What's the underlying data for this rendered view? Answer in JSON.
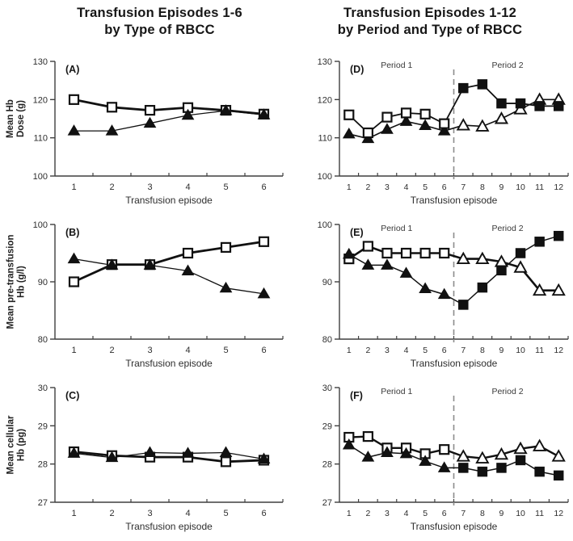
{
  "header": {
    "left_title_line1": "Transfusion Episodes 1-6",
    "left_title_line2": "by Type of RBCC",
    "right_title_line1": "Transfusion Episodes 1-12",
    "right_title_line2": "by Period and Type of RBCC"
  },
  "rows": [
    {
      "ylabel_line1": "Mean Hb",
      "ylabel_line2": "Dose (g)"
    },
    {
      "ylabel_line1": "Mean pre-transfusion",
      "ylabel_line2": "Hb (g/l)"
    },
    {
      "ylabel_line1": "Mean cellular",
      "ylabel_line2": "Hb (pg)"
    }
  ],
  "colors": {
    "line": "#111111",
    "axis": "#3f3f3f",
    "text": "#2e2e2e",
    "divider": "#8c8c8c",
    "marker_open_fill": "#ffffff",
    "marker_solid_fill": "#111111"
  },
  "marker_legend": {
    "os": "open-square",
    "fs": "filled-square",
    "ft": "filled-triangle",
    "ot": "open-triangle"
  },
  "chart_data": [
    {
      "panel": "A",
      "label": "(A)",
      "type": "line",
      "column": "left",
      "xlabel": "Transfusion episode",
      "ylabel": "Mean Hb Dose (g)",
      "ylim": [
        100,
        130
      ],
      "yticks": [
        100,
        110,
        120,
        130
      ],
      "categories": [
        1,
        2,
        3,
        4,
        5,
        6
      ],
      "series": [
        {
          "name": "open-squares",
          "line_width": 2.8,
          "marker": [
            "os",
            "os",
            "os",
            "os",
            "os",
            "os"
          ],
          "values": [
            120,
            118,
            117.2,
            117.9,
            117.2,
            116.2
          ]
        },
        {
          "name": "filled-triangles",
          "line_width": 1.3,
          "marker": [
            "ft",
            "ft",
            "ft",
            "ft",
            "ft",
            "ft"
          ],
          "values": [
            111.8,
            111.8,
            113.8,
            115.9,
            117.1,
            116
          ]
        }
      ]
    },
    {
      "panel": "B",
      "label": "(B)",
      "type": "line",
      "column": "left",
      "xlabel": "Transfusion episode",
      "ylabel": "Mean pre-transfusion Hb (g/l)",
      "ylim": [
        80,
        100
      ],
      "yticks": [
        80,
        90,
        100
      ],
      "categories": [
        1,
        2,
        3,
        4,
        5,
        6
      ],
      "series": [
        {
          "name": "open-squares",
          "line_width": 2.8,
          "marker": [
            "os",
            "os",
            "os",
            "os",
            "os",
            "os"
          ],
          "values": [
            90,
            93,
            93,
            95,
            96,
            97
          ]
        },
        {
          "name": "filled-triangles",
          "line_width": 1.3,
          "marker": [
            "ft",
            "ft",
            "ft",
            "ft",
            "ft",
            "ft"
          ],
          "values": [
            94,
            92.9,
            92.9,
            91.9,
            88.9,
            87.9
          ]
        }
      ]
    },
    {
      "panel": "C",
      "label": "(C)",
      "type": "line",
      "column": "left",
      "xlabel": "Transfusion episode",
      "ylabel": "Mean cellular Hb (pg)",
      "ylim": [
        27,
        30
      ],
      "yticks": [
        27,
        28,
        29,
        30
      ],
      "categories": [
        1,
        2,
        3,
        4,
        5,
        6
      ],
      "series": [
        {
          "name": "open-squares",
          "line_width": 2.8,
          "marker": [
            "os",
            "os",
            "os",
            "os",
            "os",
            "os"
          ],
          "values": [
            28.32,
            28.22,
            28.18,
            28.18,
            28.06,
            28.1
          ]
        },
        {
          "name": "filled-triangles",
          "line_width": 1.3,
          "marker": [
            "ft",
            "ft",
            "ft",
            "ft",
            "ft",
            "ft"
          ],
          "values": [
            28.28,
            28.17,
            28.3,
            28.28,
            28.3,
            28.13
          ]
        }
      ]
    },
    {
      "panel": "D",
      "label": "(D)",
      "type": "line",
      "column": "right",
      "xlabel": "Transfusion episode",
      "ylabel": "Mean Hb Dose (g)",
      "ylim": [
        100,
        130
      ],
      "yticks": [
        100,
        110,
        120,
        130
      ],
      "categories": [
        1,
        2,
        3,
        4,
        5,
        6,
        7,
        8,
        9,
        10,
        11,
        12
      ],
      "divider_after": 6,
      "period_labels": [
        "Period 1",
        "Period 2"
      ],
      "series": [
        {
          "name": "triangles-line",
          "line_width": 1.6,
          "marker": [
            "ft",
            "ft",
            "ft",
            "ft",
            "ft",
            "ft",
            "ot",
            "ot",
            "ot",
            "ot",
            "ot",
            "ot"
          ],
          "values": [
            111,
            109.8,
            112.2,
            114.3,
            113.2,
            111.8,
            113.3,
            113,
            115,
            117.5,
            120,
            120
          ]
        },
        {
          "name": "squares-line",
          "line_width": 1.8,
          "marker": [
            "os",
            "os",
            "os",
            "os",
            "os",
            "os",
            "fs",
            "fs",
            "fs",
            "fs",
            "fs",
            "fs"
          ],
          "values": [
            116,
            111.3,
            115.4,
            116.5,
            116.2,
            113.7,
            123,
            124,
            119,
            119,
            118.3,
            118.3
          ]
        }
      ]
    },
    {
      "panel": "E",
      "label": "(E)",
      "type": "line",
      "column": "right",
      "xlabel": "Transfusion episode",
      "ylabel": "Mean pre-transfusion Hb (g/l)",
      "ylim": [
        80,
        100
      ],
      "yticks": [
        80,
        90,
        100
      ],
      "categories": [
        1,
        2,
        3,
        4,
        5,
        6,
        7,
        8,
        9,
        10,
        11,
        12
      ],
      "divider_after": 6,
      "period_labels": [
        "Period 1",
        "Period 2"
      ],
      "series": [
        {
          "name": "open-markers-line",
          "line_width": 2.6,
          "marker": [
            "os",
            "os",
            "os",
            "os",
            "os",
            "os",
            "ot",
            "ot",
            "ot",
            "ot",
            "ot",
            "ot"
          ],
          "values": [
            94,
            96.2,
            95,
            95,
            95,
            95,
            94,
            94,
            93.5,
            92.5,
            88.5,
            88.5
          ]
        },
        {
          "name": "filled-markers-line",
          "line_width": 1.5,
          "marker": [
            "ft",
            "ft",
            "ft",
            "ft",
            "ft",
            "ft",
            "fs",
            "fs",
            "fs",
            "fs",
            "fs",
            "fs"
          ],
          "values": [
            94.8,
            92.9,
            92.9,
            91.5,
            88.8,
            87.8,
            86,
            89,
            92,
            95,
            97,
            98
          ]
        }
      ]
    },
    {
      "panel": "F",
      "label": "(F)",
      "type": "line",
      "column": "right",
      "xlabel": "Transfusion episode",
      "ylabel": "Mean cellular Hb (pg)",
      "ylim": [
        27,
        30
      ],
      "yticks": [
        27,
        28,
        29,
        30
      ],
      "categories": [
        1,
        2,
        3,
        4,
        5,
        6,
        7,
        8,
        9,
        10,
        11,
        12
      ],
      "divider_after": 6,
      "period_labels": [
        "Period 1",
        "Period 2"
      ],
      "series": [
        {
          "name": "open-markers-line",
          "line_width": 2.4,
          "marker": [
            "os",
            "os",
            "os",
            "os",
            "os",
            "os",
            "ot",
            "ot",
            "ot",
            "ot",
            "ot",
            "ot"
          ],
          "values": [
            28.7,
            28.72,
            28.42,
            28.42,
            28.27,
            28.38,
            28.2,
            28.15,
            28.25,
            28.4,
            28.47,
            28.2
          ]
        },
        {
          "name": "filled-markers-line",
          "line_width": 1.5,
          "marker": [
            "ft",
            "ft",
            "ft",
            "ft",
            "ft",
            "ft",
            "fs",
            "fs",
            "fs",
            "fs",
            "fs",
            "fs"
          ],
          "values": [
            28.5,
            28.18,
            28.3,
            28.27,
            28.07,
            27.9,
            27.9,
            27.8,
            27.9,
            28.1,
            27.8,
            27.7
          ]
        }
      ]
    }
  ]
}
